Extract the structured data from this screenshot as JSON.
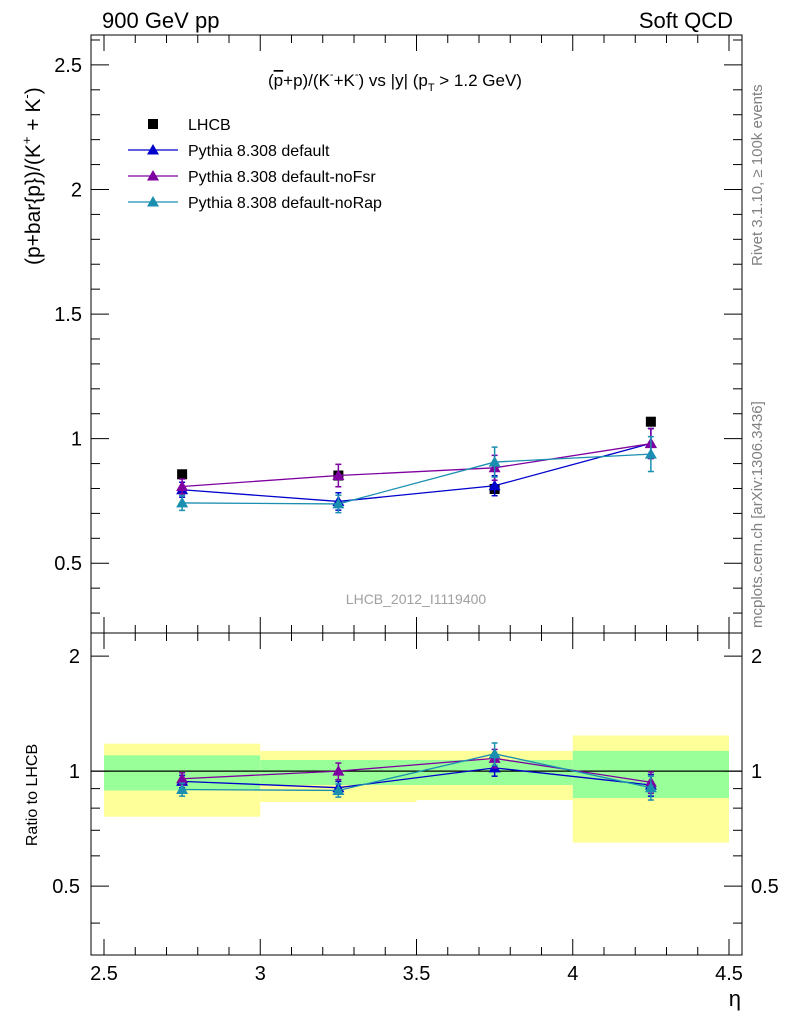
{
  "header": {
    "left": "900 GeV pp",
    "right": "Soft QCD"
  },
  "side_text": {
    "top": "Rivet 3.1.10, ≥ 100k events",
    "bottom": "mcplots.cern.ch [arXiv:1306.3436]"
  },
  "chart_data": [
    {
      "type": "scatter",
      "title_parts": {
        "open": "(",
        "pbar": "p",
        "mid": "+p)/(K",
        "sup1": "-",
        "plus": "+K",
        "sup2": "-",
        "close1": ") vs |y| (p",
        "sub": "T",
        "close2": " > 1.2 GeV)"
      },
      "ylabel": "(p+bar{p})/(K",
      "ylabel_sup": "+",
      "ylabel_tail": " + K",
      "ylabel_sup2": "-",
      "ylabel_close": ")",
      "watermark": "LHCB_2012_I1119400",
      "xlim": [
        2.5,
        4.5
      ],
      "ylim": [
        0.22,
        2.62
      ],
      "yticks": [
        0.5,
        1,
        1.5,
        2,
        2.5
      ],
      "ytick_labels": [
        "0.5",
        "1",
        "1.5",
        "2",
        "2.5"
      ],
      "x": [
        2.75,
        3.25,
        3.75,
        4.25
      ],
      "series": [
        {
          "name": "LHCB",
          "color": "#000000",
          "marker": "square",
          "values": [
            0.857,
            0.852,
            0.798,
            1.068
          ],
          "errors": [
            0.005,
            0.005,
            0.005,
            0.005
          ]
        },
        {
          "name": "Pythia 8.308 default",
          "color": "#0000cc",
          "marker": "triangle",
          "values": [
            0.795,
            0.748,
            0.811,
            0.981
          ],
          "errors": [
            0.03,
            0.035,
            0.04,
            0.06
          ]
        },
        {
          "name": "Pythia 8.308 default-noFsr",
          "color": "#7f00a0",
          "marker": "triangle",
          "values": [
            0.808,
            0.852,
            0.883,
            0.98
          ],
          "errors": [
            0.03,
            0.045,
            0.05,
            0.06
          ]
        },
        {
          "name": "Pythia 8.308 default-noRap",
          "color": "#1a8fb0",
          "marker": "triangle",
          "values": [
            0.742,
            0.738,
            0.906,
            0.938
          ],
          "errors": [
            0.03,
            0.035,
            0.06,
            0.07
          ]
        }
      ],
      "legend_position": "top-left"
    },
    {
      "type": "scatter",
      "ylabel": "Ratio to LHCB",
      "xlabel": "η",
      "xlim": [
        2.5,
        4.5
      ],
      "ylim": [
        0.33,
        2.3
      ],
      "yticks": [
        0.5,
        1,
        2
      ],
      "ytick_labels": [
        "0.5",
        "1",
        "2"
      ],
      "xticks": [
        2.5,
        3,
        3.5,
        4,
        4.5
      ],
      "xtick_labels": [
        "2.5",
        "3",
        "3.5",
        "4",
        "4.5"
      ],
      "x": [
        2.75,
        3.25,
        3.75,
        4.25
      ],
      "bins": [
        [
          2.5,
          3.0
        ],
        [
          3.0,
          3.5
        ],
        [
          3.5,
          4.0
        ],
        [
          4.0,
          4.5
        ]
      ],
      "band_inner": [
        [
          0.89,
          1.1
        ],
        [
          0.92,
          1.07
        ],
        [
          0.92,
          1.07
        ],
        [
          0.85,
          1.13
        ]
      ],
      "band_outer": [
        [
          0.76,
          1.18
        ],
        [
          0.83,
          1.13
        ],
        [
          0.84,
          1.13
        ],
        [
          0.65,
          1.24
        ]
      ],
      "series": [
        {
          "name": "Pythia 8.308 default",
          "color": "#0000cc",
          "values": [
            0.94,
            0.905,
            1.02,
            0.92
          ],
          "errors": [
            0.035,
            0.035,
            0.05,
            0.06
          ]
        },
        {
          "name": "Pythia 8.308 default-noFsr",
          "color": "#7f00a0",
          "values": [
            0.955,
            1.0,
            1.08,
            0.935
          ],
          "errors": [
            0.035,
            0.05,
            0.06,
            0.06
          ]
        },
        {
          "name": "Pythia 8.308 default-noRap",
          "color": "#1a8fb0",
          "values": [
            0.895,
            0.89,
            1.11,
            0.905
          ],
          "errors": [
            0.035,
            0.035,
            0.075,
            0.065
          ]
        }
      ],
      "band_colors": {
        "inner": "#99ff99",
        "outer": "#ffff99"
      }
    }
  ]
}
